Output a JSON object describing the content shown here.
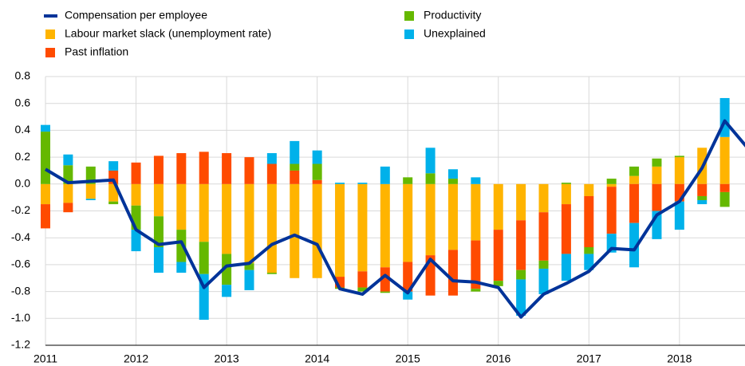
{
  "chart_data": {
    "type": "bar",
    "x": [
      2011,
      2011.25,
      2011.5,
      2011.75,
      2012,
      2012.25,
      2012.5,
      2012.75,
      2013,
      2013.25,
      2013.5,
      2013.75,
      2014,
      2014.25,
      2014.5,
      2014.75,
      2015,
      2015.25,
      2015.5,
      2015.75,
      2016,
      2016.25,
      2016.5,
      2016.75,
      2017,
      2017.25,
      2017.5,
      2017.75,
      2018,
      2018.25,
      2018.5,
      2018.75
    ],
    "series": [
      {
        "name": "Compensation per employee",
        "type": "line",
        "color": "#003399",
        "values": [
          0.11,
          0.01,
          0.02,
          0.03,
          -0.34,
          -0.45,
          -0.43,
          -0.77,
          -0.61,
          -0.59,
          -0.45,
          -0.38,
          -0.45,
          -0.78,
          -0.82,
          -0.68,
          -0.81,
          -0.56,
          -0.72,
          -0.73,
          -0.77,
          -0.99,
          -0.82,
          -0.74,
          -0.65,
          -0.48,
          -0.49,
          -0.23,
          -0.13,
          0.12,
          0.47,
          0.27
        ]
      },
      {
        "name": "Labour market slack (unemployment rate)",
        "type": "bar",
        "color": "#ffb400",
        "values": [
          -0.15,
          -0.14,
          -0.11,
          -0.13,
          -0.16,
          -0.24,
          -0.34,
          -0.43,
          -0.52,
          -0.59,
          -0.66,
          -0.7,
          -0.7,
          -0.69,
          -0.65,
          -0.62,
          -0.58,
          -0.53,
          -0.49,
          -0.42,
          -0.34,
          -0.27,
          -0.21,
          -0.15,
          -0.09,
          -0.02,
          0.06,
          0.13,
          0.2,
          0.27,
          0.35,
          null
        ]
      },
      {
        "name": "Past inflation",
        "type": "bar",
        "color": "#ff4b00",
        "values": [
          -0.18,
          -0.07,
          0,
          0.1,
          0.16,
          0.21,
          0.23,
          0.24,
          0.23,
          0.2,
          0.15,
          0.1,
          0.03,
          -0.08,
          -0.12,
          -0.18,
          -0.22,
          -0.3,
          -0.34,
          -0.36,
          -0.38,
          -0.37,
          -0.36,
          -0.37,
          -0.38,
          -0.35,
          -0.29,
          -0.2,
          -0.13,
          -0.09,
          -0.06,
          null
        ]
      },
      {
        "name": "Productivity",
        "type": "bar",
        "color": "#65b800",
        "values": [
          0.39,
          0.14,
          0.13,
          -0.02,
          -0.18,
          -0.23,
          -0.24,
          -0.24,
          -0.23,
          -0.05,
          -0.01,
          0.05,
          0.12,
          -0.01,
          -0.03,
          -0.01,
          0.05,
          0.08,
          0.04,
          -0.02,
          -0.04,
          -0.07,
          -0.06,
          0.01,
          -0.05,
          0.04,
          0.07,
          0.06,
          0.01,
          -0.03,
          -0.11,
          null
        ]
      },
      {
        "name": "Unexplained",
        "type": "bar",
        "color": "#00b1ea",
        "values": [
          0.05,
          0.08,
          -0.01,
          0.07,
          -0.16,
          -0.19,
          -0.08,
          -0.34,
          -0.09,
          -0.15,
          0.08,
          0.17,
          0.1,
          0.01,
          0.01,
          0.13,
          -0.06,
          0.19,
          0.07,
          0.05,
          0,
          -0.27,
          -0.19,
          -0.2,
          -0.12,
          -0.14,
          -0.33,
          -0.21,
          -0.21,
          -0.03,
          0.29,
          null
        ]
      }
    ],
    "xlim": [
      2011,
      2018.75
    ],
    "xticks": [
      2011,
      2012,
      2013,
      2014,
      2015,
      2016,
      2017,
      2018
    ],
    "ylim": [
      -1.2,
      0.8
    ],
    "yticks": [
      0.8,
      0.6,
      0.4,
      0.2,
      {
        "value": 0,
        "label": "0.0"
      },
      -0.2,
      -0.4,
      -0.6,
      -0.8,
      {
        "value": -1,
        "label": "-1.0"
      },
      {
        "value": -1.2,
        "label": "-1.2"
      }
    ],
    "grid": true
  }
}
